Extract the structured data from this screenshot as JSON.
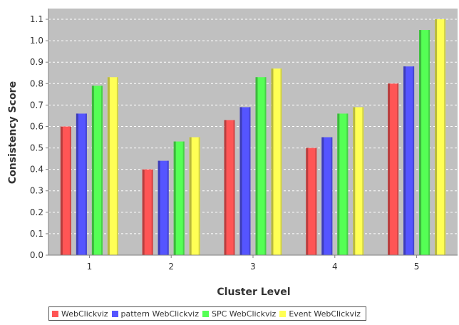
{
  "chart_data": {
    "type": "bar",
    "title": "",
    "xlabel": "Cluster Level",
    "ylabel": "Consistency Score",
    "categories": [
      "1",
      "2",
      "3",
      "4",
      "5"
    ],
    "ylim": [
      0,
      1.15
    ],
    "yticks": [
      "0.0",
      "0.1",
      "0.2",
      "0.3",
      "0.4",
      "0.5",
      "0.6",
      "0.7",
      "0.8",
      "0.9",
      "1.0",
      "1.1"
    ],
    "grid": true,
    "legend_position": "bottom",
    "plot_background": "#c0c0c0",
    "series": [
      {
        "name": "WebClickviz",
        "color": "#ff5555",
        "values": [
          0.6,
          0.4,
          0.63,
          0.5,
          0.8
        ]
      },
      {
        "name": "pattern WebClickviz",
        "color": "#5555ff",
        "values": [
          0.66,
          0.44,
          0.69,
          0.55,
          0.88
        ]
      },
      {
        "name": "SPC WebClickviz",
        "color": "#55ff55",
        "values": [
          0.79,
          0.53,
          0.83,
          0.66,
          1.05
        ]
      },
      {
        "name": "Event WebClickviz",
        "color": "#ffff55",
        "values": [
          0.83,
          0.55,
          0.87,
          0.69,
          1.1
        ]
      }
    ]
  }
}
